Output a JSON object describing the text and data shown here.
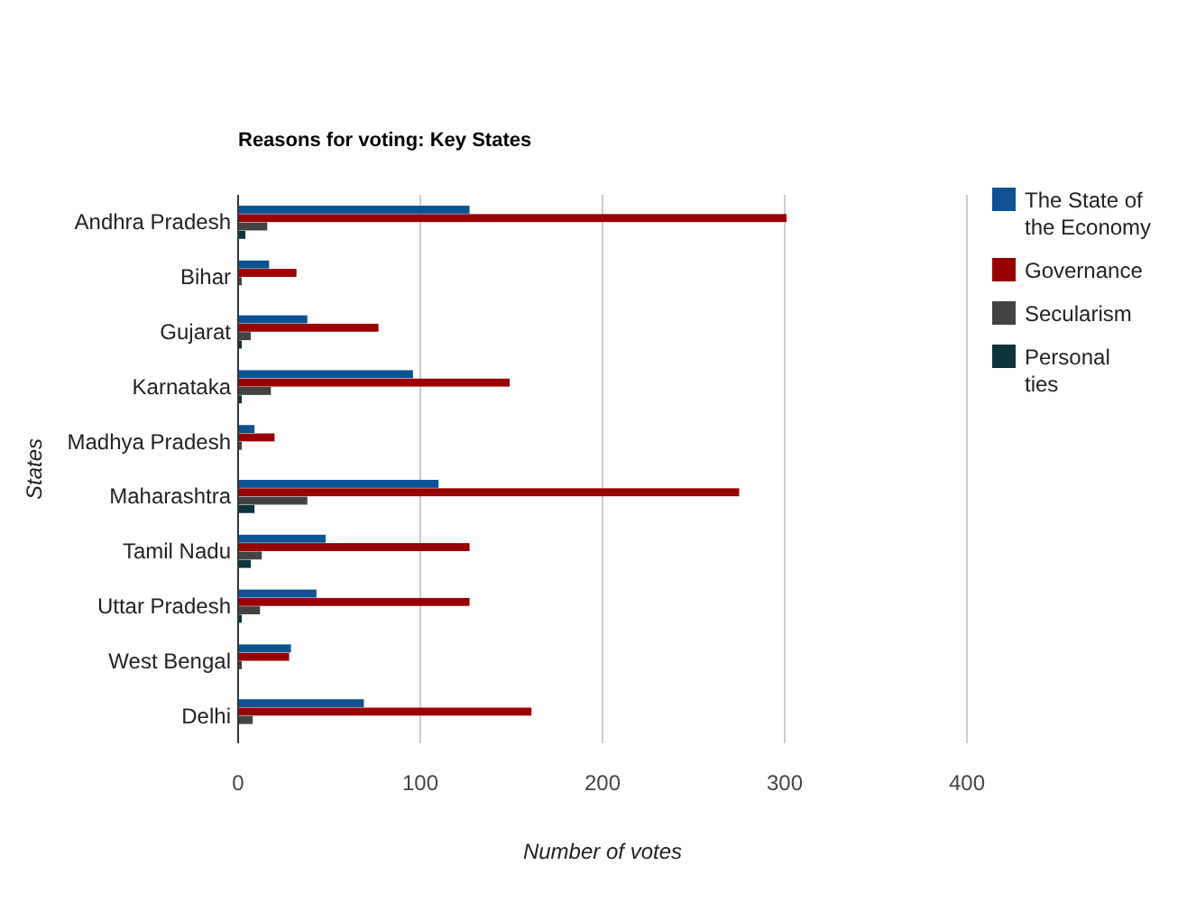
{
  "chart_data": {
    "type": "bar",
    "orientation": "horizontal",
    "title": "Reasons for voting: Key States",
    "xlabel": "Number of votes",
    "ylabel": "States",
    "categories": [
      "Andhra Pradesh",
      "Bihar",
      "Gujarat",
      "Karnataka",
      "Madhya Pradesh",
      "Maharashtra",
      "Tamil Nadu",
      "Uttar Pradesh",
      "West Bengal",
      "Delhi"
    ],
    "series": [
      {
        "name": "The State of the Economy",
        "color": "#0b5394",
        "values": [
          127,
          17,
          38,
          96,
          9,
          110,
          48,
          43,
          29,
          69
        ]
      },
      {
        "name": "Governance",
        "color": "#990000",
        "values": [
          301,
          32,
          77,
          149,
          20,
          275,
          127,
          127,
          28,
          161
        ]
      },
      {
        "name": "Secularism",
        "color": "#434343",
        "values": [
          16,
          2,
          7,
          18,
          2,
          38,
          13,
          12,
          2,
          8
        ]
      },
      {
        "name": "Personal ties",
        "color": "#0c343d",
        "values": [
          4,
          0,
          2,
          2,
          0,
          9,
          7,
          2,
          0,
          0
        ]
      }
    ],
    "xlim": [
      0,
      400
    ],
    "xticks": [
      0,
      100,
      200,
      300,
      400
    ],
    "grid": "x",
    "legend": "right"
  }
}
